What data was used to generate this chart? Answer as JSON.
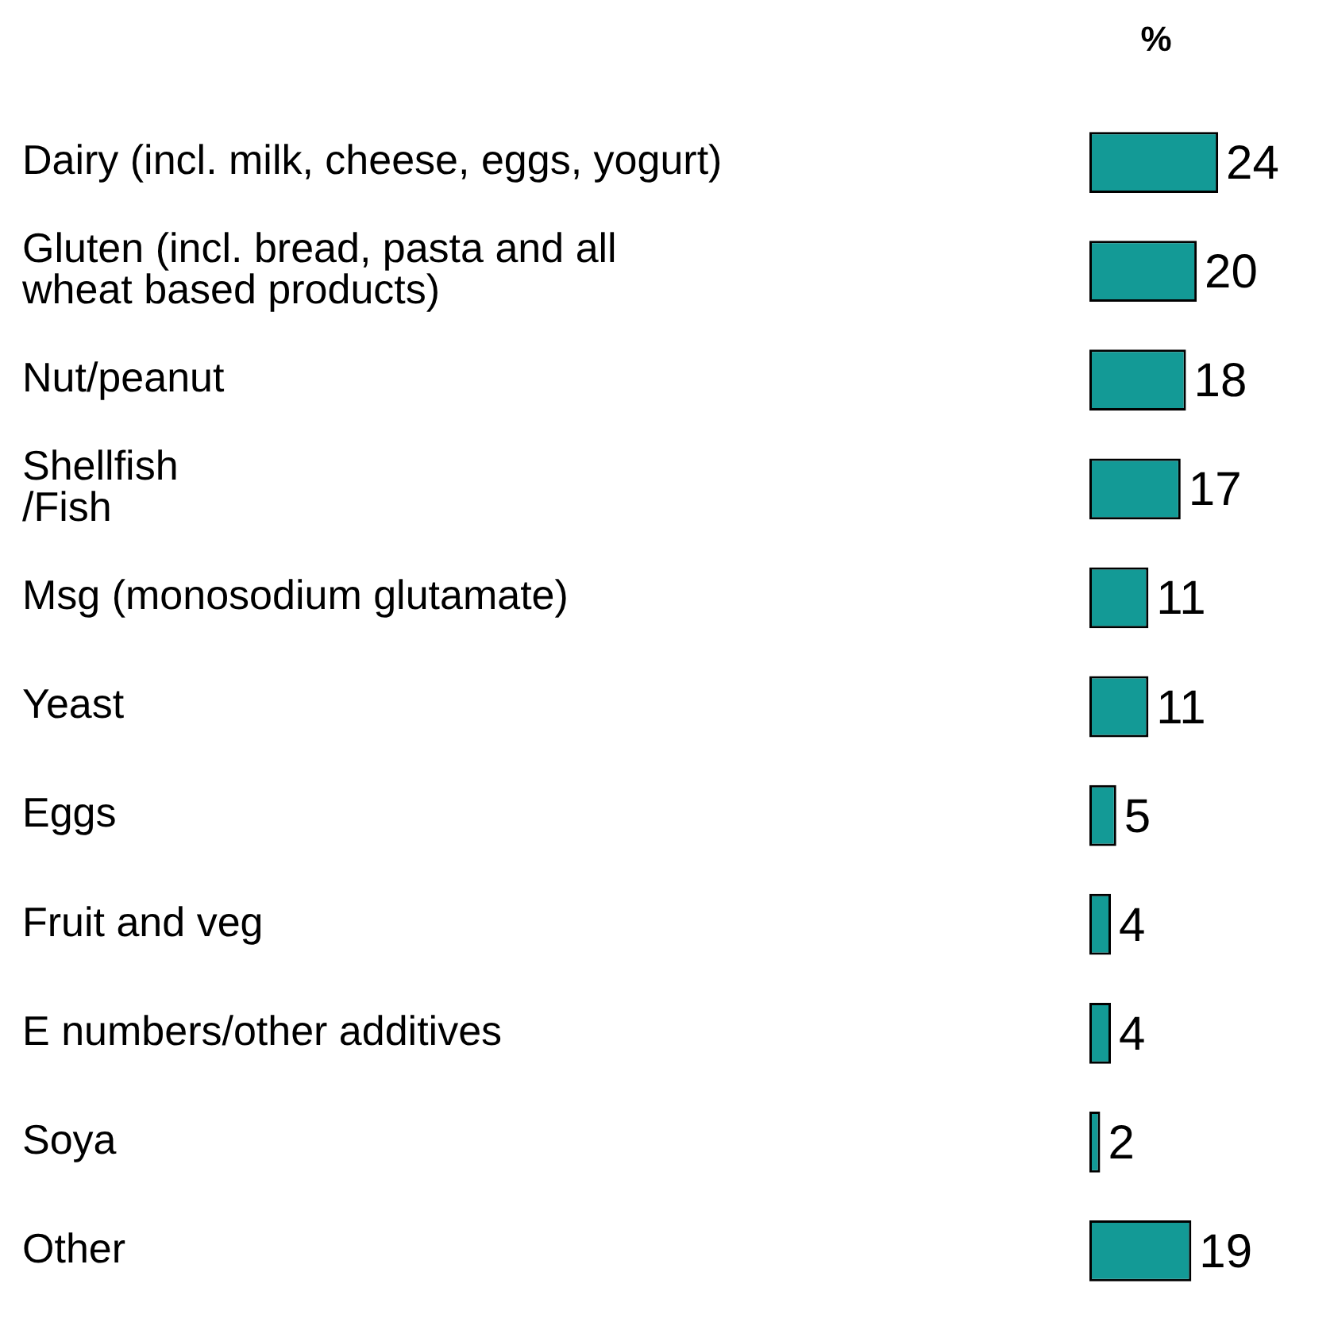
{
  "chart_data": {
    "type": "bar",
    "orientation": "horizontal",
    "xlabel": "%",
    "categories": [
      "Dairy (incl. milk, cheese, eggs, yogurt)",
      "Gluten (incl. bread, pasta and all\nwheat based products)",
      "Nut/peanut",
      "Shellfish\n/Fish",
      "Msg (monosodium glutamate)",
      "Yeast",
      "Eggs",
      "Fruit and veg",
      "E numbers/other additives",
      "Soya",
      "Other"
    ],
    "values": [
      24,
      20,
      18,
      17,
      11,
      11,
      5,
      4,
      4,
      2,
      19
    ],
    "color": "#139a96",
    "data_labels": true,
    "legend": false
  }
}
